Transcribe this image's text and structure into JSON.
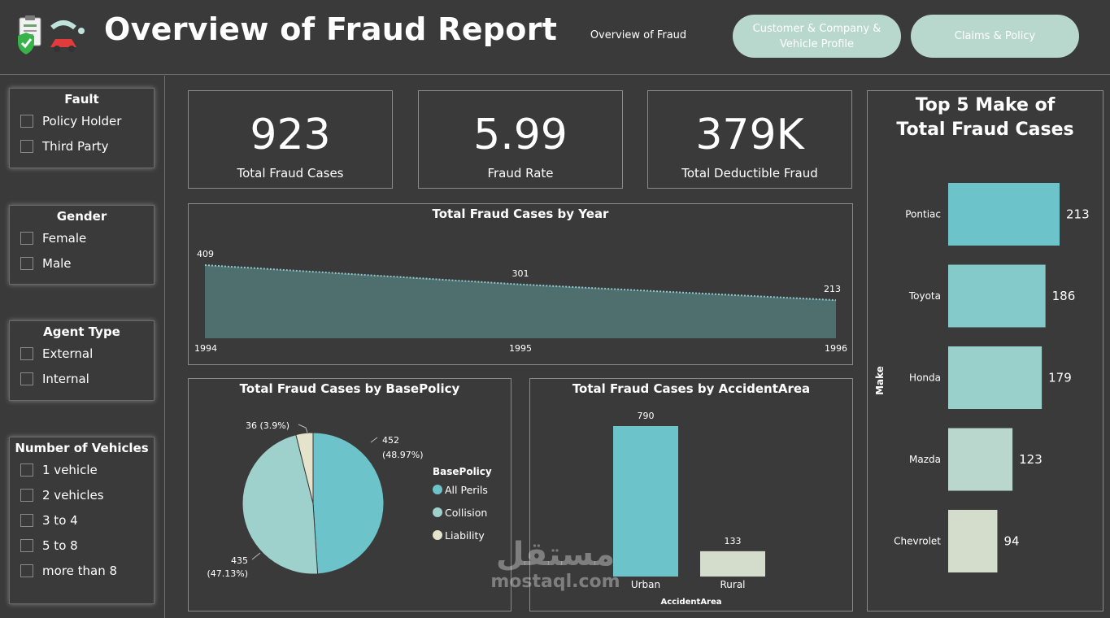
{
  "header": {
    "title": "Overview of Fraud Report",
    "nav": {
      "overview": "Overview of Fraud",
      "profile": "Customer & Company & Vehicle Profile",
      "claims": "Claims & Policy"
    }
  },
  "slicers": {
    "fault": {
      "title": "Fault",
      "items": [
        "Policy Holder",
        "Third Party"
      ]
    },
    "gender": {
      "title": "Gender",
      "items": [
        "Female",
        "Male"
      ]
    },
    "agent_type": {
      "title": "Agent Type",
      "items": [
        "External",
        "Internal"
      ]
    },
    "vehicles": {
      "title": "Number of Vehicles",
      "items": [
        "1 vehicle",
        "2 vehicles",
        "3 to 4",
        "5 to 8",
        "more than 8"
      ]
    }
  },
  "kpis": {
    "total_cases": {
      "value": "923",
      "label": "Total Fraud Cases"
    },
    "fraud_rate": {
      "value": "5.99",
      "label": "Fraud Rate"
    },
    "deductible": {
      "value": "379K",
      "label": "Total Deductible Fraud"
    }
  },
  "watermark": {
    "arabic": "مستقل",
    "latin": "mostaql.com"
  },
  "colors": {
    "teal": "#6cc3c9",
    "area": "#4e6f6d",
    "collision": "#9ed1cc",
    "liability": "#e6e3cc",
    "rural": "#d4ddcb",
    "button": "#b9d8cd"
  },
  "chart_data": [
    {
      "type": "area",
      "title": "Total Fraud Cases by Year",
      "x": [
        "1994",
        "1995",
        "1996"
      ],
      "values": [
        409,
        301,
        213
      ],
      "ylim": [
        0,
        409
      ]
    },
    {
      "type": "pie",
      "title": "Total Fraud Cases by BasePolicy",
      "legend_title": "BasePolicy",
      "legend_position": "right",
      "slices": [
        {
          "name": "All Perils",
          "value": 452,
          "label": "452",
          "pct": "(48.97%)",
          "color": "#6cc3c9"
        },
        {
          "name": "Collision",
          "value": 435,
          "label": "435",
          "pct": "(47.13%)",
          "color": "#9ed1cc"
        },
        {
          "name": "Liability",
          "value": 36,
          "label": "36 (3.9%)",
          "pct": "",
          "color": "#e6e3cc"
        }
      ]
    },
    {
      "type": "bar",
      "title": "Total Fraud Cases by AccidentArea",
      "categories": [
        "Urban",
        "Rural"
      ],
      "values": [
        790,
        133
      ],
      "xlabel": "AccidentArea",
      "colors": [
        "#6cc3c9",
        "#d4ddcb"
      ],
      "ylim": [
        0,
        790
      ]
    },
    {
      "type": "bar",
      "orientation": "horizontal",
      "title": "Top 5 Make of Total Fraud Cases",
      "ylabel": "Make",
      "categories": [
        "Pontiac",
        "Toyota",
        "Honda",
        "Mazda",
        "Chevrolet"
      ],
      "values": [
        213,
        186,
        179,
        123,
        94
      ],
      "colors": [
        "#6cc3c9",
        "#84cacb",
        "#9ad0cb",
        "#b9d7cc",
        "#d4ddcb"
      ],
      "xlim": [
        0,
        213
      ]
    }
  ]
}
